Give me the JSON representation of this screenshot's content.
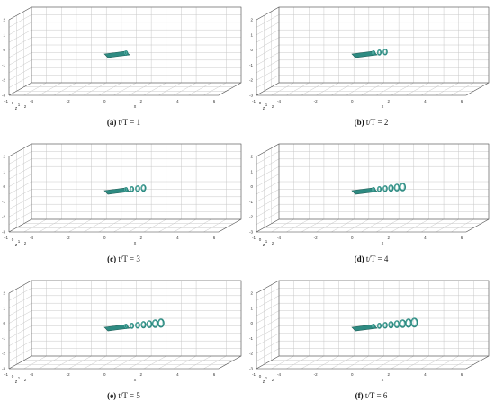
{
  "figure": {
    "panels": [
      {
        "letter": "(a)",
        "eq": "t/T = 1",
        "slug": "a",
        "time": 1
      },
      {
        "letter": "(b)",
        "eq": "t/T = 2",
        "slug": "b",
        "time": 2
      },
      {
        "letter": "(c)",
        "eq": "t/T = 3",
        "slug": "c",
        "time": 3
      },
      {
        "letter": "(d)",
        "eq": "t/T = 4",
        "slug": "d",
        "time": 4
      },
      {
        "letter": "(e)",
        "eq": "t/T = 5",
        "slug": "e",
        "time": 5
      },
      {
        "letter": "(f)",
        "eq": "t/T = 6",
        "slug": "f",
        "time": 6
      }
    ],
    "axes": {
      "x_label": "x",
      "y_label": "y",
      "z_label": "z",
      "x_ticks": [
        "-4",
        "-2",
        "0",
        "2",
        "4",
        "6"
      ],
      "y_ticks": [
        "-3",
        "-2",
        "-1",
        "0",
        "1",
        "2"
      ],
      "z_ticks": [
        "-1",
        "0",
        "1",
        "2"
      ]
    },
    "colors": {
      "wake": "#2e8b82",
      "wake_dark": "#1f5f58",
      "wake_light": "#6fc1b6",
      "grid": "#c8c8c8",
      "frame": "#555555"
    }
  }
}
